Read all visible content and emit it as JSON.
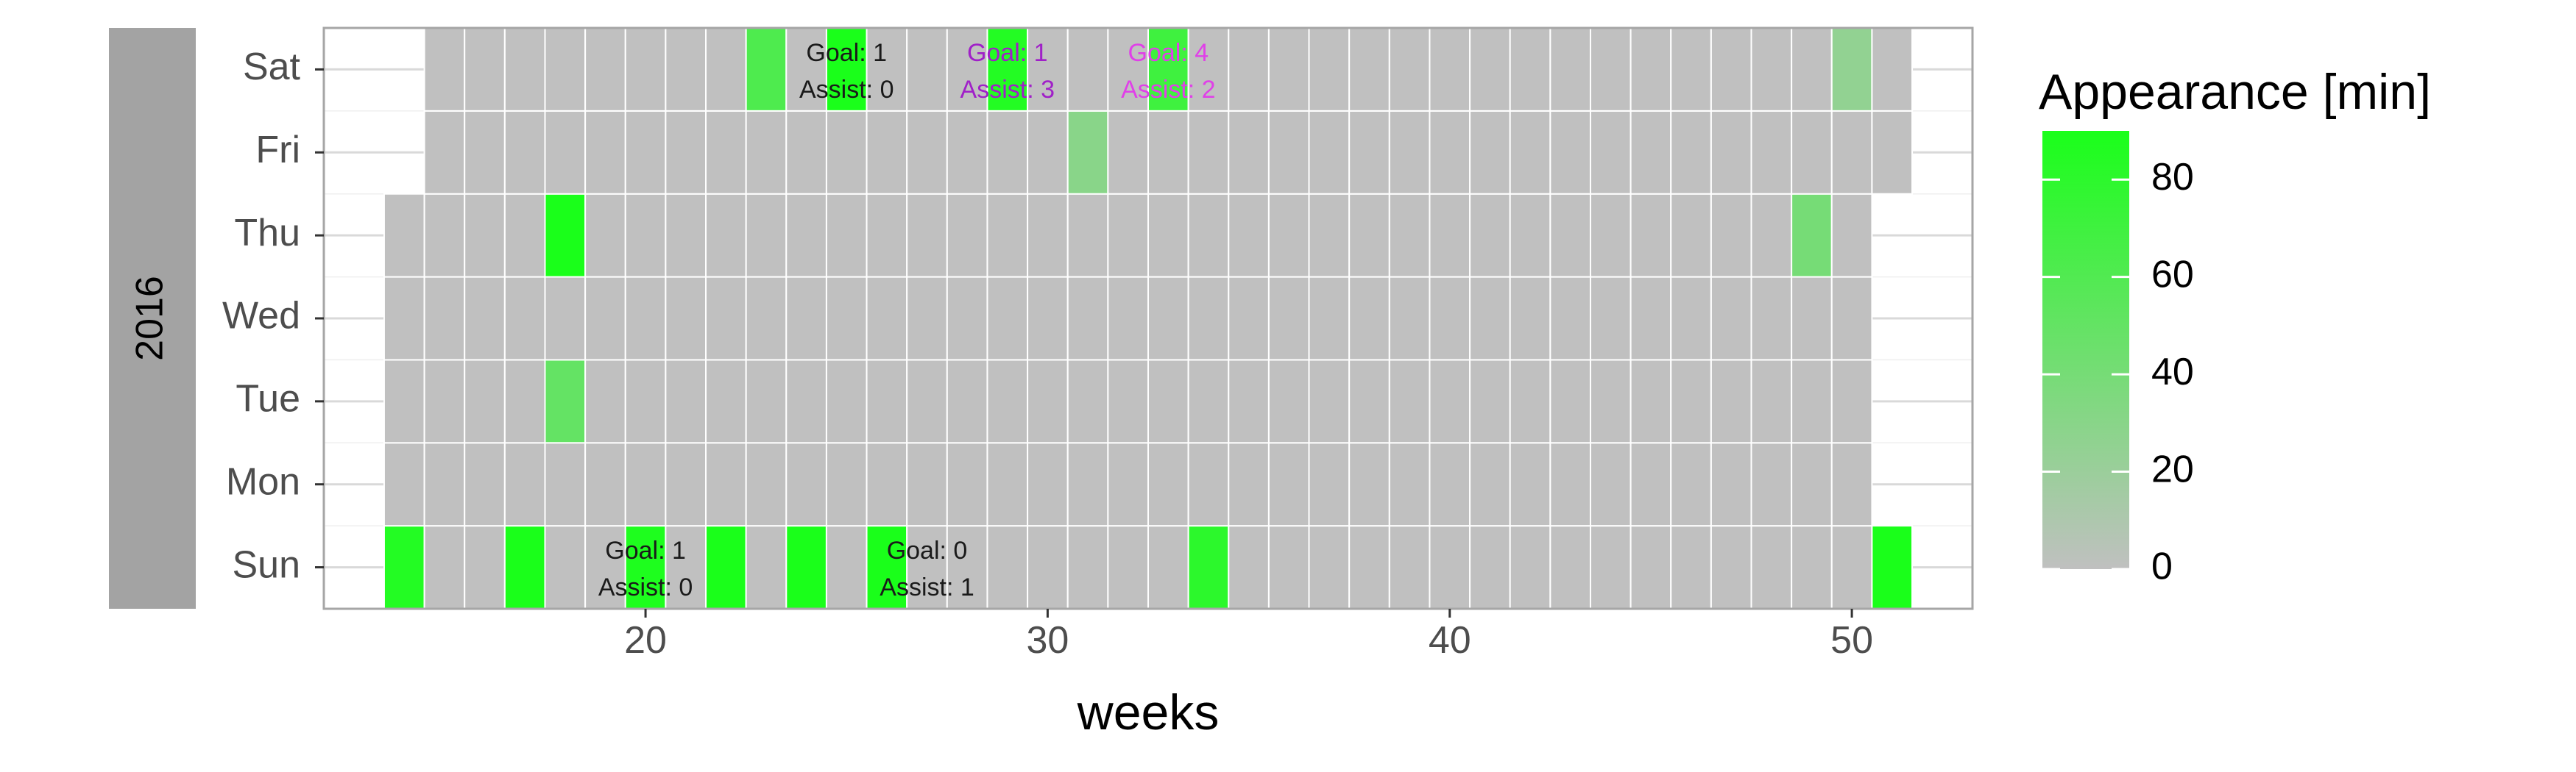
{
  "chart_data": {
    "type": "heatmap",
    "title": "",
    "facet_label": "2016",
    "xlabel": "weeks",
    "ylabel": "",
    "xlim": [
      12,
      53
    ],
    "x_ticks": [
      20,
      30,
      40,
      50
    ],
    "y_categories": [
      "Sun",
      "Mon",
      "Tue",
      "Wed",
      "Thu",
      "Fri",
      "Sat"
    ],
    "week_coverage": {
      "Sun": [
        14,
        51
      ],
      "Mon": [
        14,
        50
      ],
      "Tue": [
        14,
        50
      ],
      "Wed": [
        14,
        50
      ],
      "Thu": [
        14,
        50
      ],
      "Fri": [
        15,
        51
      ],
      "Sat": [
        15,
        51
      ]
    },
    "appearances": [
      {
        "day": "Sun",
        "week": 14,
        "minutes": 85
      },
      {
        "day": "Sun",
        "week": 17,
        "minutes": 90
      },
      {
        "day": "Sun",
        "week": 20,
        "minutes": 88
      },
      {
        "day": "Sun",
        "week": 22,
        "minutes": 90
      },
      {
        "day": "Sun",
        "week": 24,
        "minutes": 90
      },
      {
        "day": "Sun",
        "week": 26,
        "minutes": 90
      },
      {
        "day": "Sun",
        "week": 34,
        "minutes": 80
      },
      {
        "day": "Sun",
        "week": 51,
        "minutes": 90
      },
      {
        "day": "Tue",
        "week": 18,
        "minutes": 50
      },
      {
        "day": "Thu",
        "week": 18,
        "minutes": 90
      },
      {
        "day": "Thu",
        "week": 49,
        "minutes": 40
      },
      {
        "day": "Fri",
        "week": 31,
        "minutes": 30
      },
      {
        "day": "Sat",
        "week": 23,
        "minutes": 62
      },
      {
        "day": "Sat",
        "week": 25,
        "minutes": 90
      },
      {
        "day": "Sat",
        "week": 29,
        "minutes": 85
      },
      {
        "day": "Sat",
        "week": 33,
        "minutes": 70
      },
      {
        "day": "Sat",
        "week": 50,
        "minutes": 25
      }
    ],
    "annotations": [
      {
        "day": "Sat",
        "week": 25,
        "goal_label": "Goal: 1",
        "assist_label": "Assist: 0",
        "color": "#1a1a1a"
      },
      {
        "day": "Sat",
        "week": 29,
        "goal_label": "Goal: 1",
        "assist_label": "Assist: 3",
        "color": "#a020c8"
      },
      {
        "day": "Sat",
        "week": 33,
        "goal_label": "Goal: 4",
        "assist_label": "Assist: 2",
        "color": "#e040e8"
      },
      {
        "day": "Sun",
        "week": 20,
        "goal_label": "Goal: 1",
        "assist_label": "Assist: 0",
        "color": "#1a1a1a"
      },
      {
        "day": "Sun",
        "week": 27,
        "goal_label": "Goal: 0",
        "assist_label": "Assist: 1",
        "color": "#1a1a1a"
      }
    ],
    "legend": {
      "title": "Appearance [min]",
      "placement": "right",
      "breaks": [
        0,
        20,
        40,
        60,
        80
      ],
      "range": [
        0,
        90
      ],
      "low_color": "#c0c0c0",
      "high_color": "#1aff1a"
    },
    "grid": true,
    "colors": {
      "empty_cell": "#c0c0c0",
      "grid_line": "#d9d9d9",
      "panel_border": "#a6a6a6",
      "strip_background": "#a3a3a3",
      "strip_text": "#ffffff"
    }
  }
}
